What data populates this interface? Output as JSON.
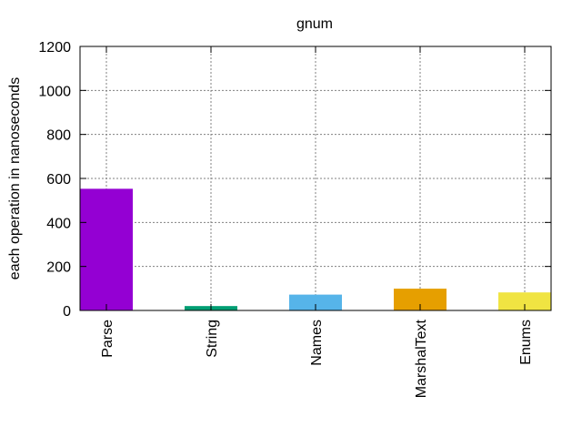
{
  "chart_data": {
    "type": "bar",
    "title": "gnum",
    "xlabel": "",
    "ylabel": "each operation in nanoseconds",
    "categories": [
      "Parse",
      "String",
      "Names",
      "MarshalText",
      "Enums"
    ],
    "values": [
      553,
      20,
      72,
      99,
      82
    ],
    "colors": [
      "#9400d3",
      "#009e73",
      "#56b4e9",
      "#e69f00",
      "#f0e442"
    ],
    "ylim": [
      0,
      1200
    ],
    "yticks": [
      0,
      200,
      400,
      600,
      800,
      1000,
      1200
    ],
    "grid": true,
    "legend": "none"
  }
}
